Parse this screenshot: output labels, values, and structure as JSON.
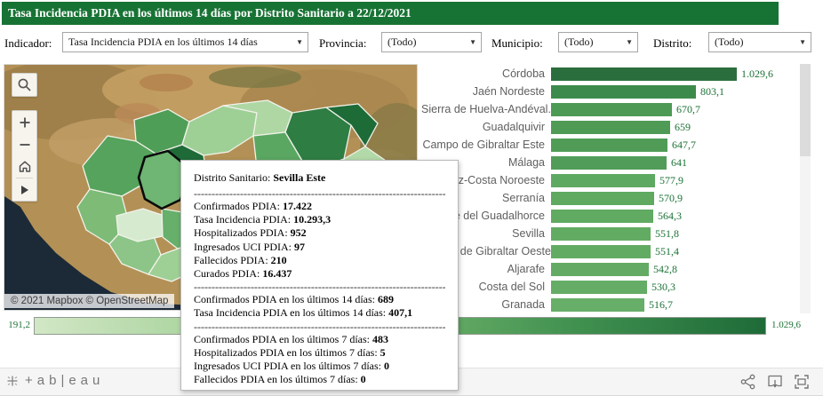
{
  "header": {
    "title": "Tasa Incidencia PDIA en los últimos 14 días por Distrito Sanitario a 22/12/2021"
  },
  "filters": [
    {
      "label": "Indicador:",
      "value": "Tasa Incidencia PDIA en los últimos 14 días"
    },
    {
      "label": "Provincia:",
      "value": "(Todo)"
    },
    {
      "label": "Municipio:",
      "value": "(Todo)"
    },
    {
      "label": "Distrito:",
      "value": "(Todo)"
    }
  ],
  "map": {
    "attribution": "© 2021 Mapbox  © OpenStreetMap",
    "highlighted_district": "Sevilla Este",
    "controls": [
      "search",
      "zoom-in",
      "zoom-out",
      "home",
      "expand"
    ]
  },
  "chart_data": {
    "type": "bar",
    "orientation": "horizontal",
    "categories": [
      "Córdoba",
      "Jaén Nordeste",
      "Sierra de Huelva-Andéval..",
      "Guadalquivir",
      "Campo de Gibraltar Este",
      "Málaga",
      "Jerez-Costa Noroeste",
      "Serranía",
      "Valle del Guadalhorce",
      "Sevilla",
      "Campo de Gibraltar Oeste",
      "Aljarafe",
      "Costa del Sol",
      "Granada"
    ],
    "values": [
      1029.6,
      803.1,
      670.7,
      659,
      647.7,
      641,
      577.9,
      570.9,
      564.3,
      551.8,
      551.4,
      542.8,
      530.3,
      516.7
    ],
    "value_labels": [
      "1.029,6",
      "803,1",
      "670,7",
      "659",
      "647,7",
      "641",
      "577,9",
      "570,9",
      "564,3",
      "551,8",
      "551,4",
      "542,8",
      "530,3",
      "516,7"
    ],
    "bar_colors": [
      "#2b6e3d",
      "#3c8a4c",
      "#4d9a55",
      "#4f9b56",
      "#509c57",
      "#519c58",
      "#5ea961",
      "#5fa961",
      "#60aa62",
      "#62ab63",
      "#62ab63",
      "#63ab64",
      "#65ac66",
      "#67ae68"
    ],
    "xlim": [
      0,
      1029.6
    ],
    "grid": false,
    "legend_position": "none"
  },
  "legend": {
    "min_label": "191,2",
    "max_label": "1.029,6"
  },
  "tooltip": {
    "title_label": "Distrito Sanitario:",
    "title_value": "Sevilla Este",
    "divider": "--------------------------------------------------------------------------------",
    "sections": [
      {
        "lines": [
          [
            "Confirmados PDIA:",
            "17.422"
          ],
          [
            "Tasa Incidencia PDIA:",
            "10.293,3"
          ],
          [
            "Hospitalizados PDIA:",
            "952"
          ],
          [
            "Ingresados UCI PDIA:",
            "97"
          ],
          [
            "Fallecidos PDIA:",
            "210"
          ],
          [
            "Curados PDIA:",
            "16.437"
          ]
        ]
      },
      {
        "lines": [
          [
            "Confirmados PDIA en los últimos 14 días:",
            "689"
          ],
          [
            "Tasa Incidencia PDIA en los últimos 14 días:",
            "407,1"
          ]
        ]
      },
      {
        "lines": [
          [
            "Confirmados PDIA en los últimos 7 días:",
            "483"
          ],
          [
            "Hospitalizados PDIA en los últimos 7 días:",
            "5"
          ],
          [
            "Ingresados UCI PDIA en los últimos 7 días:",
            "0"
          ],
          [
            "Fallecidos PDIA en los últimos 7 días:",
            "0"
          ]
        ]
      }
    ]
  },
  "footer": {
    "logo_text": "+ab|eau"
  },
  "colors": {
    "header_bg": "#177334",
    "accent_green": "#1b7235",
    "legend_gradient": [
      "#d2e7c6",
      "#a6d29a",
      "#6fb36b",
      "#3f8f4f",
      "#1e6b38"
    ]
  }
}
